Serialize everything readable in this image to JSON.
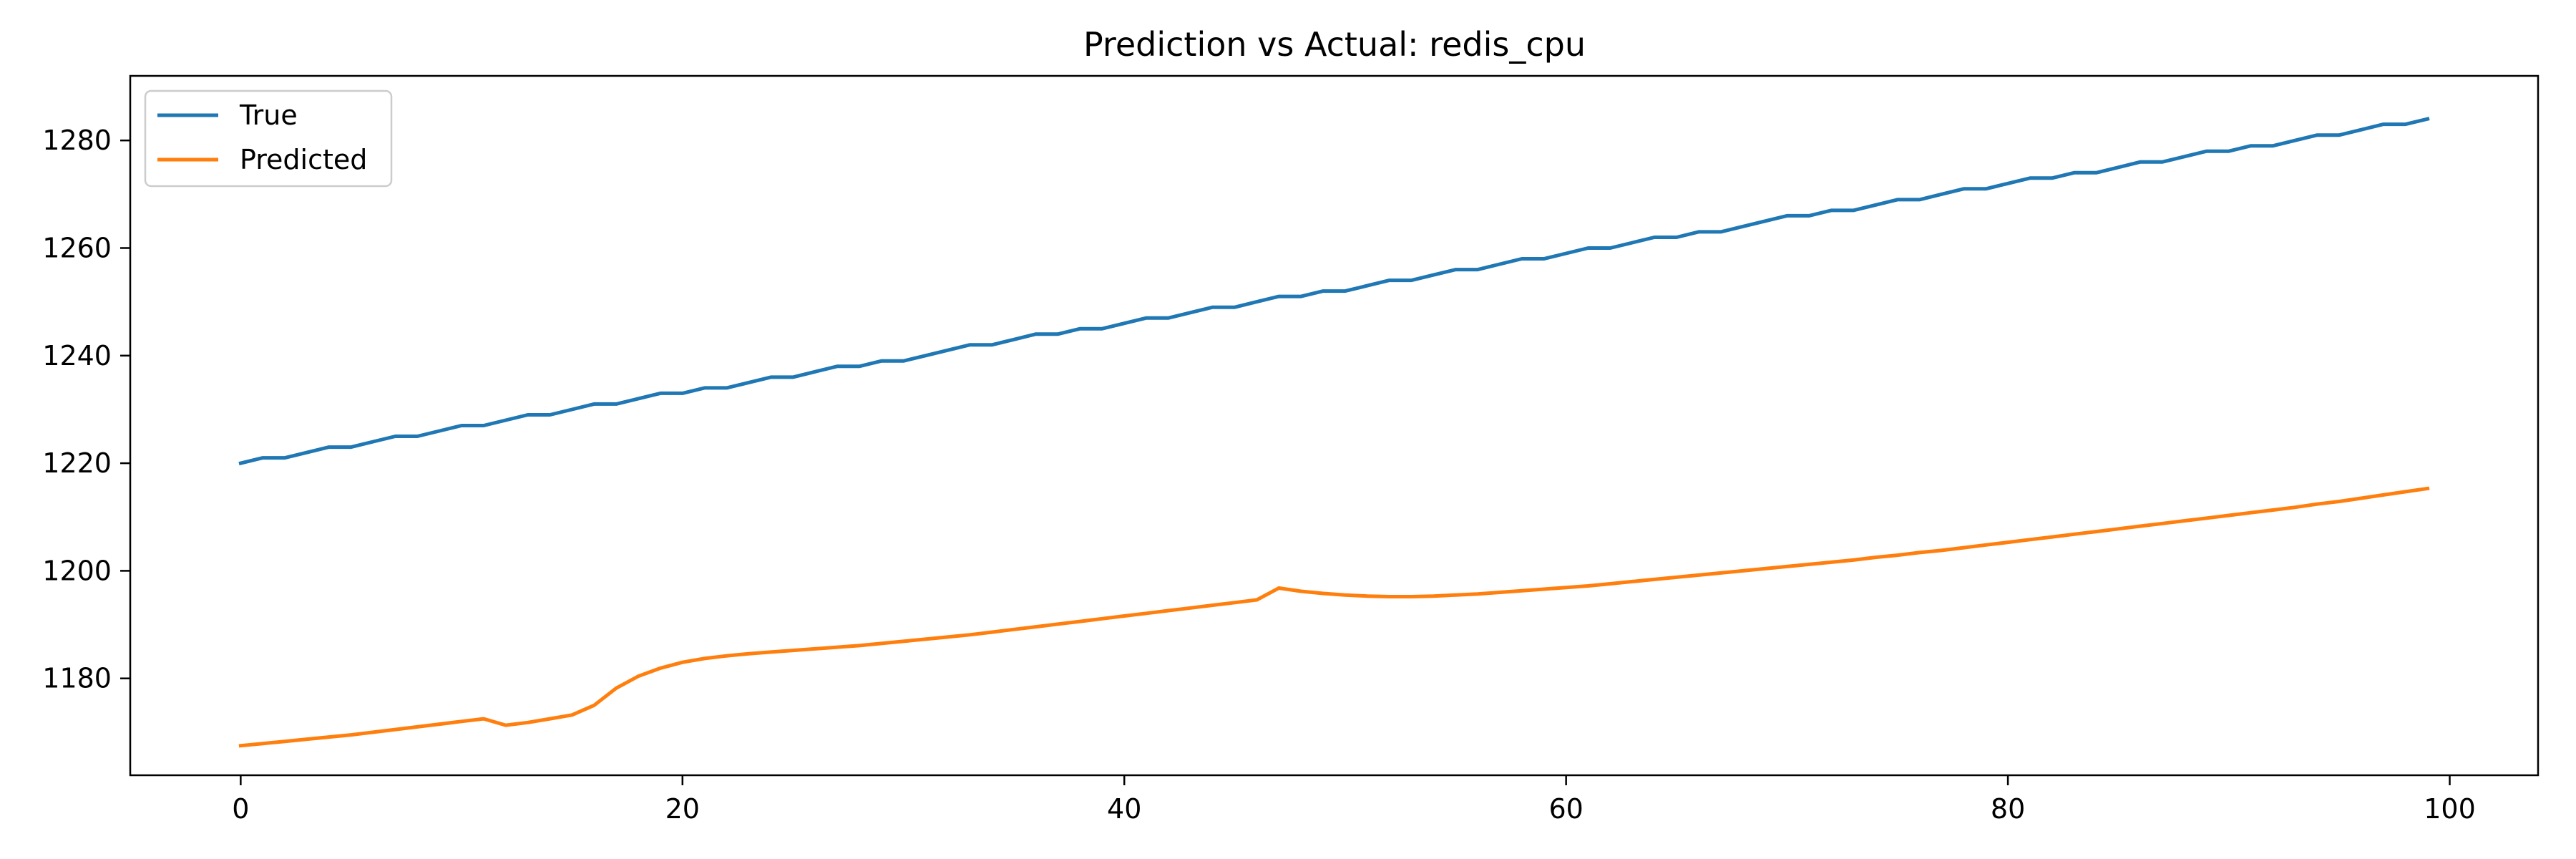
{
  "chart_data": {
    "type": "line",
    "title": "Prediction vs Actual: redis_cpu",
    "xlabel": "",
    "ylabel": "",
    "xlim": [
      -5,
      104
    ],
    "ylim": [
      1162,
      1292
    ],
    "xticks": [
      0,
      20,
      40,
      60,
      80,
      100
    ],
    "yticks": [
      1180,
      1200,
      1220,
      1240,
      1260,
      1280
    ],
    "grid": false,
    "legend": {
      "position": "top-left"
    },
    "x": [
      0,
      1,
      2,
      3,
      4,
      5,
      6,
      7,
      8,
      9,
      10,
      11,
      12,
      13,
      14,
      15,
      16,
      17,
      18,
      19,
      20,
      21,
      22,
      23,
      24,
      25,
      26,
      27,
      28,
      29,
      30,
      31,
      32,
      33,
      34,
      35,
      36,
      37,
      38,
      39,
      40,
      41,
      42,
      43,
      44,
      45,
      46,
      47,
      48,
      49,
      50,
      51,
      52,
      53,
      54,
      55,
      56,
      57,
      58,
      59,
      60,
      61,
      62,
      63,
      64,
      65,
      66,
      67,
      68,
      69,
      70,
      71,
      72,
      73,
      74,
      75,
      76,
      77,
      78,
      79,
      80,
      81,
      82,
      83,
      84,
      85,
      86,
      87,
      88,
      89,
      90,
      91,
      92,
      93,
      94,
      95,
      96,
      97,
      98,
      99
    ],
    "series": [
      {
        "name": "True",
        "color": "#1f77b4",
        "values": [
          1220,
          1221,
          1221,
          1222,
          1223,
          1223,
          1224,
          1225,
          1225,
          1226,
          1227,
          1227,
          1228,
          1229,
          1229,
          1230,
          1231,
          1231,
          1232,
          1233,
          1233,
          1234,
          1234,
          1235,
          1236,
          1236,
          1237,
          1238,
          1238,
          1239,
          1239,
          1240,
          1241,
          1242,
          1242,
          1243,
          1244,
          1244,
          1245,
          1245,
          1246,
          1247,
          1247,
          1248,
          1249,
          1249,
          1250,
          1251,
          1251,
          1252,
          1252,
          1253,
          1254,
          1254,
          1255,
          1256,
          1256,
          1257,
          1258,
          1258,
          1259,
          1260,
          1260,
          1261,
          1262,
          1262,
          1263,
          1263,
          1264,
          1265,
          1266,
          1266,
          1267,
          1267,
          1268,
          1269,
          1269,
          1270,
          1271,
          1271,
          1272,
          1273,
          1273,
          1274,
          1274,
          1275,
          1276,
          1276,
          1277,
          1278,
          1278,
          1279,
          1279,
          1280,
          1281,
          1281,
          1282,
          1283,
          1283,
          1284
        ]
      },
      {
        "name": "Predicted",
        "color": "#ff7f0e",
        "values": [
          1167.5,
          1167.9,
          1168.3,
          1168.7,
          1169.1,
          1169.5,
          1170.0,
          1170.5,
          1171.0,
          1171.5,
          1172.0,
          1172.5,
          1171.3,
          1171.8,
          1172.5,
          1173.2,
          1175.0,
          1178.2,
          1180.4,
          1181.9,
          1183.0,
          1183.7,
          1184.2,
          1184.6,
          1184.9,
          1185.2,
          1185.5,
          1185.8,
          1186.1,
          1186.5,
          1186.9,
          1187.3,
          1187.7,
          1188.1,
          1188.6,
          1189.1,
          1189.6,
          1190.1,
          1190.6,
          1191.1,
          1191.6,
          1192.1,
          1192.6,
          1193.1,
          1193.6,
          1194.1,
          1194.6,
          1196.8,
          1196.2,
          1195.8,
          1195.5,
          1195.3,
          1195.2,
          1195.2,
          1195.3,
          1195.5,
          1195.7,
          1196.0,
          1196.3,
          1196.6,
          1196.9,
          1197.2,
          1197.6,
          1198.0,
          1198.4,
          1198.8,
          1199.2,
          1199.6,
          1200.0,
          1200.4,
          1200.8,
          1201.2,
          1201.6,
          1202.0,
          1202.5,
          1202.9,
          1203.4,
          1203.8,
          1204.3,
          1204.8,
          1205.3,
          1205.8,
          1206.3,
          1206.8,
          1207.3,
          1207.8,
          1208.3,
          1208.8,
          1209.3,
          1209.8,
          1210.3,
          1210.8,
          1211.3,
          1211.8,
          1212.4,
          1212.9,
          1213.5,
          1214.1,
          1214.7,
          1215.3
        ]
      }
    ]
  }
}
